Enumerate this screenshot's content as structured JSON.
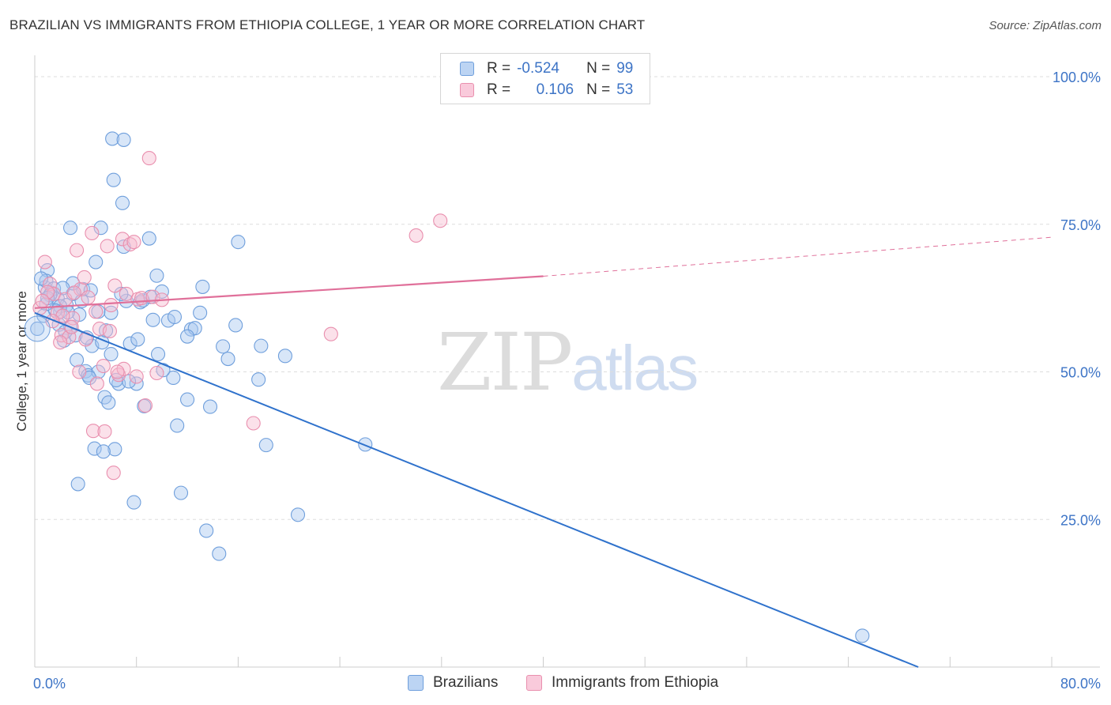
{
  "header": {
    "title": "BRAZILIAN VS IMMIGRANTS FROM ETHIOPIA COLLEGE, 1 YEAR OR MORE CORRELATION CHART",
    "source": "Source: ZipAtlas.com"
  },
  "legend_top": {
    "rows": [
      {
        "r_label": "R =",
        "r_value": "-0.524",
        "n_label": "N =",
        "n_value": "99"
      },
      {
        "r_label": "R =",
        "r_value": "0.106",
        "n_label": "N =",
        "n_value": "53"
      }
    ]
  },
  "watermark": {
    "zip": "ZIP",
    "atlas": "atlas"
  },
  "colors": {
    "blue_fill": "#a9c8f0",
    "blue_stroke": "#6f9fdc",
    "blue_line": "#2f72cc",
    "pink_fill": "#f7bcd0",
    "pink_stroke": "#e98fae",
    "pink_line": "#e0709a",
    "axis_text": "#3d74c6",
    "grid": "#dddddd"
  },
  "chart_data": {
    "type": "scatter",
    "title": "BRAZILIAN VS IMMIGRANTS FROM ETHIOPIA COLLEGE, 1 YEAR OR MORE CORRELATION CHART",
    "xlabel": "",
    "ylabel": "College, 1 year or more",
    "xlim": [
      0,
      80
    ],
    "ylim": [
      0,
      103
    ],
    "x_tick_labels": [
      {
        "x": 0,
        "label": "0.0%"
      },
      {
        "x": 80,
        "label": "80.0%"
      }
    ],
    "x_minor_ticks": [
      8,
      16,
      24,
      32,
      40,
      48,
      56,
      64,
      72,
      80
    ],
    "y_ticks": [
      {
        "y": 100,
        "label": "100.0%"
      },
      {
        "y": 75,
        "label": "75.0%"
      },
      {
        "y": 50,
        "label": "50.0%"
      },
      {
        "y": 25,
        "label": "25.0%"
      }
    ],
    "grid": true,
    "legend_position": "top-center",
    "series": [
      {
        "name": "Brazilians",
        "color": "#a9c8f0",
        "r": -0.524,
        "n": 99,
        "trend": {
          "x0": 0,
          "y0": 60,
          "x1": 69.5,
          "y1": 0
        },
        "points": [
          [
            0.2,
            57.3
          ],
          [
            0.8,
            64.3
          ],
          [
            1.0,
            67.2
          ],
          [
            1.3,
            63.4
          ],
          [
            0.9,
            65.4
          ],
          [
            1.5,
            64.1
          ],
          [
            1.8,
            62.4
          ],
          [
            2.0,
            60.2
          ],
          [
            2.3,
            55.3
          ],
          [
            2.5,
            61.3
          ],
          [
            2.8,
            57.6
          ],
          [
            3.0,
            63.2
          ],
          [
            3.2,
            56.2
          ],
          [
            3.5,
            59.7
          ],
          [
            3.8,
            64.0
          ],
          [
            4.0,
            50.1
          ],
          [
            4.2,
            49.4
          ],
          [
            4.5,
            54.4
          ],
          [
            4.8,
            68.6
          ],
          [
            5.0,
            60.2
          ],
          [
            5.3,
            55.0
          ],
          [
            5.5,
            45.7
          ],
          [
            5.8,
            44.8
          ],
          [
            6.0,
            53.0
          ],
          [
            6.3,
            36.9
          ],
          [
            6.6,
            48.0
          ],
          [
            7.0,
            71.2
          ],
          [
            7.2,
            62.0
          ],
          [
            7.5,
            54.8
          ],
          [
            7.8,
            27.9
          ],
          [
            8.0,
            48.0
          ],
          [
            8.3,
            61.8
          ],
          [
            8.6,
            44.2
          ],
          [
            9.0,
            72.6
          ],
          [
            9.3,
            58.8
          ],
          [
            9.6,
            66.3
          ],
          [
            10.0,
            63.6
          ],
          [
            10.5,
            58.7
          ],
          [
            10.9,
            49.0
          ],
          [
            11.2,
            40.9
          ],
          [
            11.5,
            29.5
          ],
          [
            12.0,
            45.3
          ],
          [
            12.3,
            57.2
          ],
          [
            12.6,
            57.4
          ],
          [
            13.2,
            64.4
          ],
          [
            13.5,
            23.1
          ],
          [
            13.8,
            44.1
          ],
          [
            14.5,
            19.2
          ],
          [
            14.8,
            54.3
          ],
          [
            15.2,
            52.2
          ],
          [
            15.8,
            57.9
          ],
          [
            16.0,
            72.0
          ],
          [
            17.8,
            54.4
          ],
          [
            17.6,
            48.7
          ],
          [
            18.2,
            37.6
          ],
          [
            19.7,
            52.7
          ],
          [
            20.7,
            25.8
          ],
          [
            26.0,
            37.7
          ],
          [
            5.2,
            74.4
          ],
          [
            2.8,
            74.4
          ],
          [
            6.1,
            89.5
          ],
          [
            7.0,
            89.3
          ],
          [
            6.2,
            82.5
          ],
          [
            6.9,
            78.6
          ],
          [
            0.5,
            65.8
          ],
          [
            1.2,
            63.0
          ],
          [
            2.0,
            61.1
          ],
          [
            3.7,
            62.0
          ],
          [
            4.1,
            55.8
          ],
          [
            5.0,
            50.0
          ],
          [
            6.0,
            60.0
          ],
          [
            8.5,
            62.1
          ],
          [
            9.1,
            62.7
          ],
          [
            10.1,
            50.3
          ],
          [
            11.0,
            59.3
          ],
          [
            12.0,
            56.0
          ],
          [
            2.6,
            60.1
          ],
          [
            1.6,
            60.4
          ],
          [
            0.9,
            61.5
          ],
          [
            4.7,
            37.0
          ],
          [
            5.4,
            36.5
          ],
          [
            3.4,
            31.0
          ],
          [
            6.4,
            48.6
          ],
          [
            4.3,
            49.0
          ],
          [
            7.4,
            48.4
          ],
          [
            65.1,
            5.3
          ],
          [
            13.0,
            60.0
          ],
          [
            3.0,
            65.0
          ],
          [
            1.0,
            62.5
          ],
          [
            2.2,
            64.2
          ],
          [
            4.4,
            63.8
          ],
          [
            0.7,
            59.5
          ],
          [
            5.6,
            57.0
          ],
          [
            8.1,
            55.5
          ],
          [
            9.7,
            53.0
          ],
          [
            1.9,
            58.0
          ],
          [
            3.3,
            52.0
          ],
          [
            2.4,
            56.8
          ],
          [
            6.8,
            63.2
          ]
        ]
      },
      {
        "name": "Immigrants from Ethiopia",
        "color": "#f7bcd0",
        "r": 0.106,
        "n": 53,
        "trend": {
          "x0": 0,
          "y0": 60.8,
          "x1": 40,
          "y1": 66.2
        },
        "trend_ext": {
          "x0": 40,
          "y0": 66.2,
          "x1": 80,
          "y1": 72.8
        },
        "points": [
          [
            0.4,
            60.8
          ],
          [
            0.8,
            68.6
          ],
          [
            1.2,
            64.9
          ],
          [
            1.5,
            63.2
          ],
          [
            1.8,
            60.0
          ],
          [
            2.1,
            56.2
          ],
          [
            2.4,
            62.3
          ],
          [
            2.7,
            55.9
          ],
          [
            3.0,
            59.1
          ],
          [
            3.3,
            70.6
          ],
          [
            3.6,
            64.0
          ],
          [
            3.9,
            66.0
          ],
          [
            4.2,
            62.6
          ],
          [
            4.5,
            73.5
          ],
          [
            4.8,
            60.2
          ],
          [
            5.1,
            57.3
          ],
          [
            5.4,
            51.0
          ],
          [
            5.7,
            71.3
          ],
          [
            6.0,
            61.3
          ],
          [
            6.3,
            64.6
          ],
          [
            6.6,
            49.5
          ],
          [
            6.9,
            72.5
          ],
          [
            7.2,
            63.2
          ],
          [
            7.5,
            71.6
          ],
          [
            7.8,
            72.0
          ],
          [
            8.1,
            62.3
          ],
          [
            8.4,
            62.5
          ],
          [
            8.7,
            44.3
          ],
          [
            9.0,
            86.2
          ],
          [
            9.3,
            62.7
          ],
          [
            9.6,
            49.8
          ],
          [
            10.0,
            62.2
          ],
          [
            4.6,
            40.0
          ],
          [
            5.5,
            39.9
          ],
          [
            6.2,
            32.9
          ],
          [
            17.2,
            41.3
          ],
          [
            23.3,
            56.4
          ],
          [
            30.0,
            73.1
          ],
          [
            31.9,
            75.6
          ],
          [
            2.2,
            59.5
          ],
          [
            3.1,
            63.4
          ],
          [
            1.0,
            63.5
          ],
          [
            0.6,
            62.0
          ],
          [
            2.9,
            57.6
          ],
          [
            4.0,
            55.5
          ],
          [
            5.9,
            56.9
          ],
          [
            7.0,
            50.5
          ],
          [
            8.0,
            49.2
          ],
          [
            3.5,
            50.0
          ],
          [
            4.9,
            48.0
          ],
          [
            6.5,
            50.0
          ],
          [
            2.0,
            55.0
          ],
          [
            1.4,
            58.6
          ]
        ]
      }
    ]
  }
}
